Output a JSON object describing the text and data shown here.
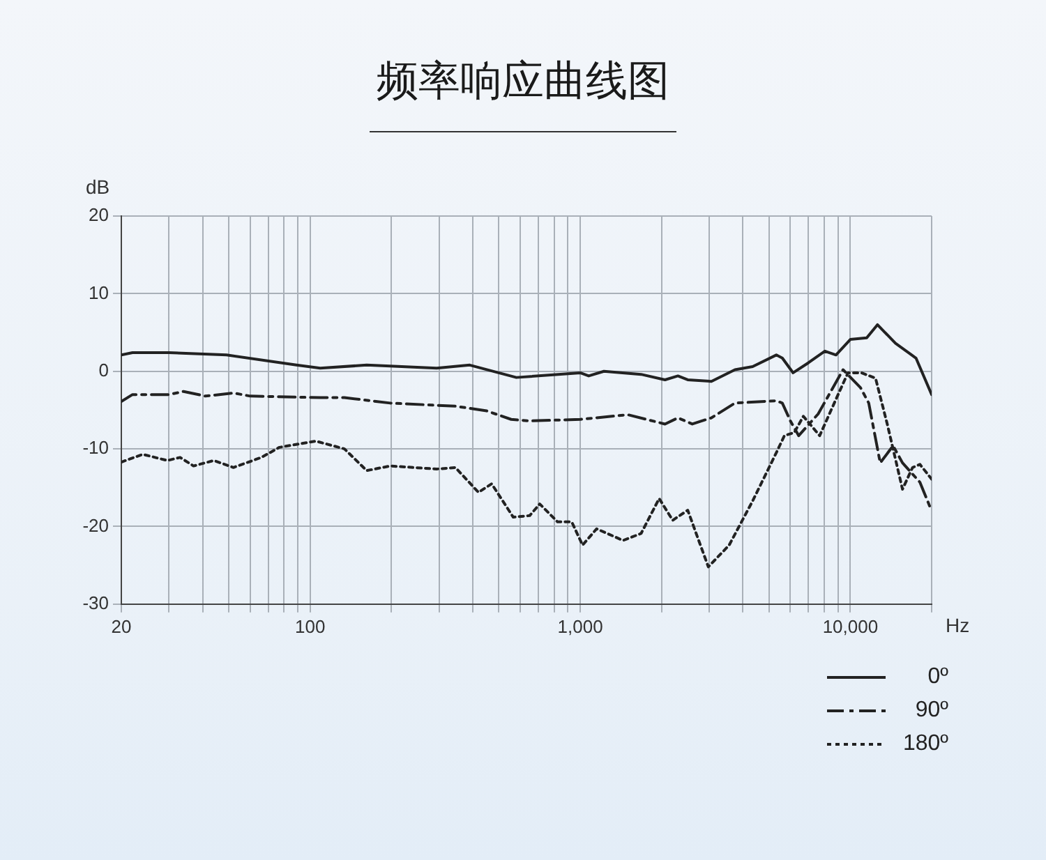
{
  "chart_data": {
    "type": "line",
    "title": "频率响应曲线图",
    "xlabel": "Hz",
    "ylabel": "dB",
    "log": "x",
    "grid": true,
    "legend": "bottom right",
    "marker": "none",
    "xlim": [
      20,
      20000
    ],
    "ylim": [
      -30,
      20
    ],
    "xticks": [
      20,
      {
        "value": 30,
        "label": null
      },
      {
        "value": 40,
        "label": null
      },
      {
        "value": 50,
        "label": null
      },
      {
        "value": 60,
        "label": null
      },
      {
        "value": 70,
        "label": null
      },
      {
        "value": 80,
        "label": null
      },
      {
        "value": 90,
        "label": null
      },
      100,
      {
        "value": 200,
        "label": null
      },
      {
        "value": 300,
        "label": null
      },
      {
        "value": 400,
        "label": null
      },
      {
        "value": 500,
        "label": null
      },
      {
        "value": 600,
        "label": null
      },
      {
        "value": 700,
        "label": null
      },
      {
        "value": 800,
        "label": null
      },
      {
        "value": 900,
        "label": null
      },
      {
        "value": 1000,
        "label": "1,000"
      },
      {
        "value": 2000,
        "label": null
      },
      {
        "value": 3000,
        "label": null
      },
      {
        "value": 4000,
        "label": null
      },
      {
        "value": 5000,
        "label": null
      },
      {
        "value": 6000,
        "label": null
      },
      {
        "value": 7000,
        "label": null
      },
      {
        "value": 8000,
        "label": null
      },
      {
        "value": 9000,
        "label": null
      },
      {
        "value": 10000,
        "label": "10,000"
      },
      {
        "value": 20000,
        "label": null
      }
    ],
    "yticks": [
      -30,
      -20,
      -10,
      0,
      10,
      20
    ],
    "series": [
      {
        "name": "0º",
        "color": "#222222",
        "line_style": "solid",
        "x": [
          20,
          22,
          30,
          49,
          89,
          109,
          162,
          294,
          390,
          580,
          1000,
          1075,
          1224,
          1680,
          2060,
          2300,
          2500,
          3060,
          3740,
          4350,
          5320,
          5600,
          6140,
          7000,
          8050,
          8850,
          10000,
          11500,
          12600,
          14700,
          17500,
          20000
        ],
        "values": [
          2.1,
          2.4,
          2.4,
          2.1,
          0.8,
          0.4,
          0.8,
          0.4,
          0.8,
          -0.8,
          -0.2,
          -0.6,
          0,
          -0.4,
          -1.1,
          -0.6,
          -1.1,
          -1.3,
          0.2,
          0.6,
          2.1,
          1.7,
          -0.2,
          1.1,
          2.6,
          2.1,
          4.1,
          4.3,
          6.0,
          3.6,
          1.7,
          -3.0
        ]
      },
      {
        "name": "90º",
        "color": "#222222",
        "line_style": "dashed",
        "x": [
          20,
          22,
          30,
          34,
          41,
          52,
          60,
          109,
          134,
          198,
          345,
          450,
          555,
          650,
          1000,
          1500,
          2060,
          2300,
          2600,
          3060,
          3740,
          5320,
          5600,
          6000,
          6440,
          7600,
          9400,
          10900,
          11700,
          12900,
          14400,
          15600,
          18100,
          20000
        ],
        "values": [
          -3.9,
          -3.0,
          -3.0,
          -2.6,
          -3.2,
          -2.8,
          -3.2,
          -3.4,
          -3.4,
          -4.1,
          -4.5,
          -5.1,
          -6.2,
          -6.4,
          -6.2,
          -5.6,
          -6.8,
          -6.0,
          -6.8,
          -6.0,
          -4.1,
          -3.8,
          -4.1,
          -6.4,
          -8.3,
          -5.5,
          0.2,
          -2.1,
          -4.1,
          -11.8,
          -9.6,
          -11.8,
          -14.3,
          -18.0
        ]
      },
      {
        "name": "180º",
        "color": "#222222",
        "line_style": "dotted",
        "x": [
          20,
          24,
          29.6,
          33,
          37,
          44,
          52,
          66,
          77,
          105,
          134,
          162,
          198,
          294,
          345,
          420,
          470,
          565,
          650,
          708,
          824,
          930,
          1020,
          1150,
          1440,
          1680,
          1960,
          2200,
          2500,
          2980,
          3560,
          4350,
          5320,
          5700,
          6200,
          6700,
          7700,
          8850,
          9800,
          11000,
          12400,
          13700,
          15600,
          17000,
          18100,
          20000
        ],
        "values": [
          -11.7,
          -10.7,
          -11.5,
          -11.1,
          -12.2,
          -11.5,
          -12.4,
          -11.1,
          -9.8,
          -9.0,
          -10.0,
          -12.8,
          -12.2,
          -12.6,
          -12.4,
          -15.6,
          -14.5,
          -18.8,
          -18.6,
          -17.1,
          -19.4,
          -19.4,
          -22.4,
          -20.3,
          -21.8,
          -20.9,
          -16.4,
          -19.2,
          -17.9,
          -25.2,
          -22.4,
          -16.7,
          -10.5,
          -8.3,
          -7.9,
          -5.8,
          -8.3,
          -3.6,
          -0.2,
          -0.2,
          -0.9,
          -6.8,
          -15.2,
          -12.4,
          -12.0,
          -13.9
        ]
      }
    ]
  }
}
